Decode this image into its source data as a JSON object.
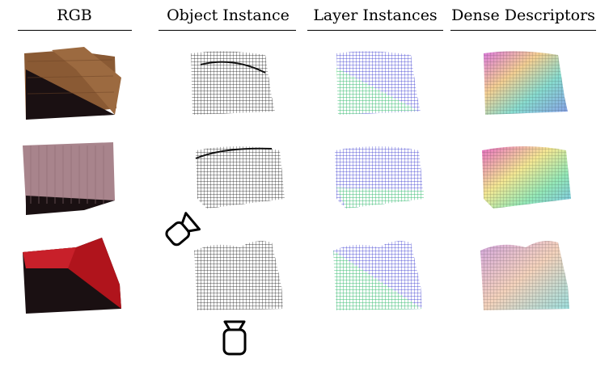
{
  "header": {
    "columns": [
      {
        "label": "RGB"
      },
      {
        "label": "Object Instance"
      },
      {
        "label": "Layer Instances"
      },
      {
        "label": "Dense Descriptors"
      }
    ]
  },
  "rows": [
    {
      "cloth_color": "#8a5a34",
      "fold": "corner"
    },
    {
      "cloth_color": "#a8848c",
      "fold": "flat"
    },
    {
      "cloth_color": "#b0141c",
      "fold": "diagonal"
    }
  ],
  "colors": {
    "object_points": "#111111",
    "top_layer": "#2a2acc",
    "bottom_layer": "#33dd55",
    "background_dark": "#1a1012"
  },
  "icons": [
    "camera-icon-side",
    "camera-icon-bottom"
  ]
}
